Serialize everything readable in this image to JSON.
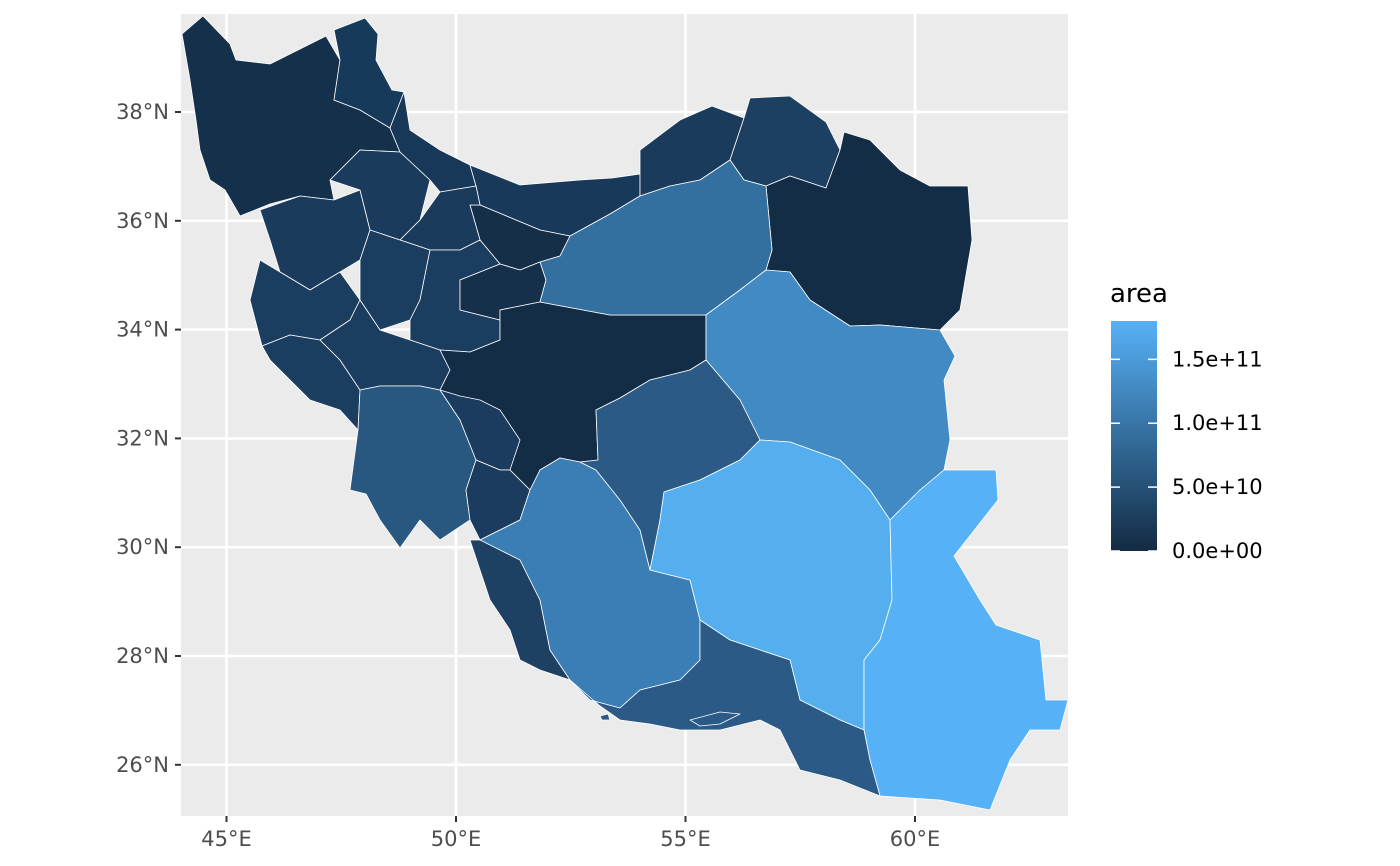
{
  "map": {
    "title": "",
    "x_axis": {
      "ticks": [
        {
          "value": 45,
          "label": "45°E"
        },
        {
          "value": 50,
          "label": "50°E"
        },
        {
          "value": 55,
          "label": "55°E"
        },
        {
          "value": 60,
          "label": "60°E"
        }
      ]
    },
    "y_axis": {
      "ticks": [
        {
          "value": 38,
          "label": "38°N"
        },
        {
          "value": 36,
          "label": "36°N"
        },
        {
          "value": 34,
          "label": "34°N"
        },
        {
          "value": 32,
          "label": "32°N"
        },
        {
          "value": 30,
          "label": "30°N"
        },
        {
          "value": 28,
          "label": "28°N"
        },
        {
          "value": 26,
          "label": "26°N"
        }
      ]
    },
    "lon_range": [
      44.0,
      63.4
    ],
    "lat_range": [
      25.0,
      39.8
    ],
    "background": "#ebebeb",
    "grid_color": "#ffffff",
    "fill_low": "#132b43",
    "fill_high": "#56b1f7"
  },
  "legend": {
    "title": "area",
    "placement": "right",
    "labels": [
      {
        "value": 150000000000.0,
        "label": "1.5e+11"
      },
      {
        "value": 100000000000.0,
        "label": "1.0e+11"
      },
      {
        "value": 50000000000.0,
        "label": "5.0e+10"
      },
      {
        "value": 0,
        "label": "0.0e+00"
      }
    ]
  }
}
